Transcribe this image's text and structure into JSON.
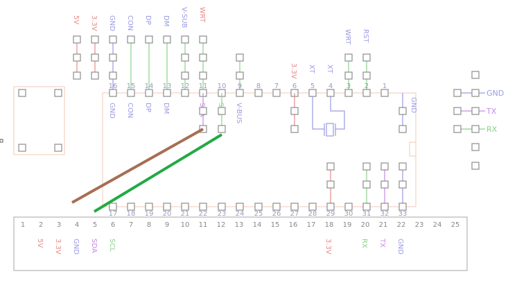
{
  "colors": {
    "red": "#e58a86",
    "blue": "#9a9ae4",
    "green": "#88d288",
    "purple": "#c38ae6",
    "num": "#9a9ac8",
    "pad": "#8c8c8c",
    "chip": "#f0c8b4",
    "board": "#b4b4b4",
    "wire_brown": "#a86e52",
    "wire_green": "#22aa44"
  },
  "top_pins": [
    {
      "num": "16",
      "label": "GND",
      "top_label": "GND",
      "color": "blue"
    },
    {
      "num": "15",
      "label": "CON",
      "top_label": "CON",
      "color": "blue"
    },
    {
      "num": "14",
      "label": "DP",
      "top_label": "DP",
      "color": "blue"
    },
    {
      "num": "13",
      "label": "DM",
      "top_label": "DM",
      "color": "blue"
    },
    {
      "num": "12",
      "label": "",
      "top_label": "V-SUB",
      "color": "blue"
    },
    {
      "num": "11",
      "label": "SDA",
      "top_label": "WRT",
      "color": "purple"
    },
    {
      "num": "10",
      "label": "SCL",
      "top_label": "",
      "color": "green"
    },
    {
      "num": "9",
      "label": "V-BUS",
      "top_label": "",
      "color": "blue"
    },
    {
      "num": "8",
      "label": "",
      "top_label": "",
      "color": "blue"
    },
    {
      "num": "7",
      "label": "",
      "top_label": "",
      "color": "blue"
    },
    {
      "num": "6",
      "label": "",
      "top_label": "3.3V",
      "color": "red"
    },
    {
      "num": "5",
      "label": "",
      "top_label": "XT",
      "color": "blue"
    },
    {
      "num": "4",
      "label": "",
      "top_label": "XT",
      "color": "blue"
    },
    {
      "num": "3",
      "label": "",
      "top_label": "WRT",
      "color": "blue"
    },
    {
      "num": "2",
      "label": "",
      "top_label": "RST",
      "color": "blue"
    },
    {
      "num": "1",
      "label": "",
      "top_label": "",
      "color": "blue"
    }
  ],
  "left_header": [
    {
      "label": "5V",
      "color": "red"
    },
    {
      "label": "3.3V",
      "color": "red"
    }
  ],
  "right_chip_label": "GND",
  "right_header": [
    {
      "label": "GND",
      "color": "blue"
    },
    {
      "label": "TX",
      "color": "purple"
    },
    {
      "label": "RX",
      "color": "green"
    }
  ],
  "bottom_chip_pins": [
    "17",
    "18",
    "19",
    "20",
    "21",
    "22",
    "23",
    "24",
    "25",
    "26",
    "27",
    "28",
    "29",
    "30",
    "31",
    "32",
    "33"
  ],
  "connector_pins": [
    {
      "num": "1",
      "label": "",
      "color": "blue"
    },
    {
      "num": "2",
      "label": "5V",
      "color": "red"
    },
    {
      "num": "3",
      "label": "3.3V",
      "color": "red"
    },
    {
      "num": "4",
      "label": "GND",
      "color": "blue"
    },
    {
      "num": "5",
      "label": "SDA",
      "color": "purple"
    },
    {
      "num": "6",
      "label": "SCL",
      "color": "green"
    },
    {
      "num": "7",
      "label": "",
      "color": "blue"
    },
    {
      "num": "8",
      "label": "",
      "color": "blue"
    },
    {
      "num": "9",
      "label": "",
      "color": "blue"
    },
    {
      "num": "10",
      "label": "",
      "color": "blue"
    },
    {
      "num": "11",
      "label": "",
      "color": "blue"
    },
    {
      "num": "12",
      "label": "",
      "color": "blue"
    },
    {
      "num": "13",
      "label": "",
      "color": "blue"
    },
    {
      "num": "14",
      "label": "",
      "color": "blue"
    },
    {
      "num": "15",
      "label": "",
      "color": "blue"
    },
    {
      "num": "16",
      "label": "",
      "color": "blue"
    },
    {
      "num": "17",
      "label": "",
      "color": "blue"
    },
    {
      "num": "18",
      "label": "3.3V",
      "color": "red"
    },
    {
      "num": "19",
      "label": "",
      "color": "blue"
    },
    {
      "num": "20",
      "label": "RX",
      "color": "green"
    },
    {
      "num": "21",
      "label": "TX",
      "color": "purple"
    },
    {
      "num": "22",
      "label": "GND",
      "color": "blue"
    },
    {
      "num": "23",
      "label": "",
      "color": "blue"
    },
    {
      "num": "24",
      "label": "",
      "color": "blue"
    },
    {
      "num": "25",
      "label": "",
      "color": "blue"
    }
  ]
}
